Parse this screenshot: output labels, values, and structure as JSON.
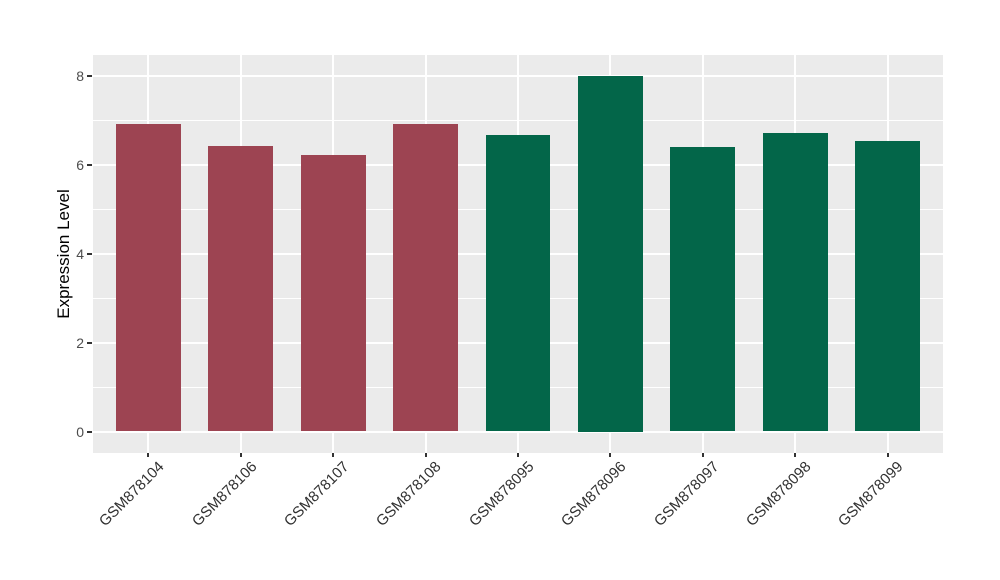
{
  "chart_data": {
    "type": "bar",
    "title": "",
    "xlabel": "",
    "ylabel": "Expression Level",
    "categories": [
      "GSM878104",
      "GSM878106",
      "GSM878107",
      "GSM878108",
      "GSM878095",
      "GSM878096",
      "GSM878097",
      "GSM878098",
      "GSM878099"
    ],
    "values": [
      6.91,
      6.42,
      6.22,
      6.9,
      6.66,
      8.0,
      6.4,
      6.7,
      6.53
    ],
    "bar_colors": [
      "#9D4452",
      "#9D4452",
      "#9D4452",
      "#9D4452",
      "#036649",
      "#036649",
      "#036649",
      "#036649",
      "#036649"
    ],
    "group_colors": {
      "maroon": "#9D4452",
      "green": "#036649"
    },
    "ylim": [
      0,
      8
    ],
    "yticks": [
      0,
      2,
      4,
      6,
      8
    ],
    "ytick_labels": [
      "0",
      "2",
      "4",
      "6",
      "8"
    ],
    "yticks_minor": [
      1,
      3,
      5,
      7
    ],
    "legend_position": "none",
    "grid": true,
    "panel_bg": "#EBEBEB",
    "grid_color": "#FFFFFF",
    "tick_color": "#333333",
    "axis_text_color": "#4d4d4d"
  }
}
